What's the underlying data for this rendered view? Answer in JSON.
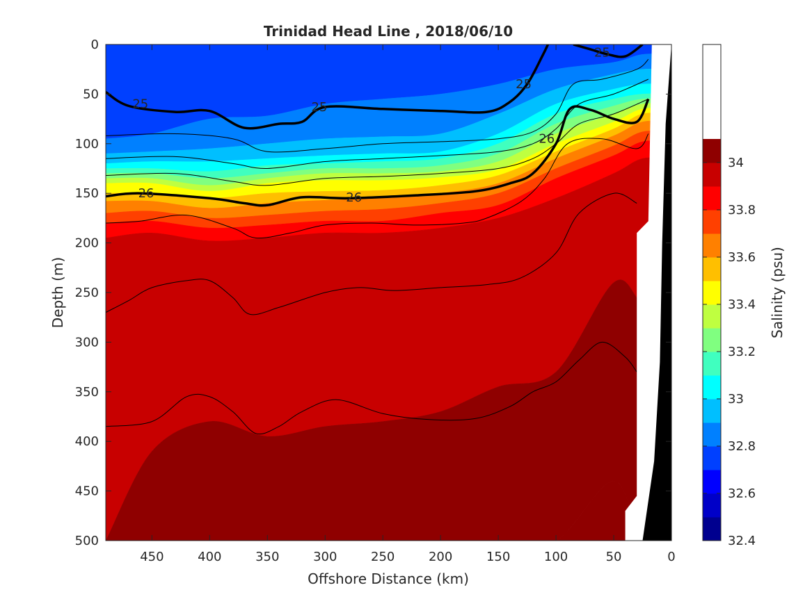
{
  "chart_data": {
    "type": "contourf",
    "title": "Trinidad Head Line , 2018/06/10",
    "xlabel": "Offshore Distance (km)",
    "ylabel": "Depth (m)",
    "xlim": [
      490,
      0
    ],
    "ylim": [
      0,
      500
    ],
    "x_reversed": true,
    "y_reversed": true,
    "xticks": [
      450,
      400,
      350,
      300,
      250,
      200,
      150,
      100,
      50,
      0
    ],
    "yticks": [
      0,
      50,
      100,
      150,
      200,
      250,
      300,
      350,
      400,
      450,
      500
    ],
    "colorbar": {
      "label": "Salinity (psu)",
      "range": [
        32.4,
        34.5
      ],
      "tick_values": [
        32.4,
        32.6,
        32.8,
        33.0,
        33.2,
        33.4,
        33.6,
        33.8,
        34.0
      ],
      "tick_labels": [
        "32.4",
        "32.6",
        "32.8",
        "33",
        "33.2",
        "33.4",
        "33.6",
        "33.8",
        "34"
      ],
      "levels": [
        32.4,
        32.5,
        32.6,
        32.7,
        32.8,
        32.9,
        33.0,
        33.1,
        33.2,
        33.3,
        33.4,
        33.5,
        33.6,
        33.7,
        33.8,
        33.9,
        34.0,
        34.1,
        34.2,
        34.3,
        34.4,
        34.5
      ],
      "colors": [
        "#00008f",
        "#0000c8",
        "#0000ff",
        "#0040ff",
        "#0080ff",
        "#00bfff",
        "#00ffff",
        "#40ffbf",
        "#80ff80",
        "#bfff40",
        "#ffff00",
        "#ffbf00",
        "#ff8000",
        "#ff4000",
        "#ff0000",
        "#c80000",
        "#8f0000"
      ]
    },
    "salinity_layers": [
      {
        "value": 32.75,
        "depth_top": [
          0,
          0,
          0,
          0,
          0,
          0,
          0,
          0,
          0,
          0,
          0
        ],
        "depth_bottom": [
          95,
          90,
          75,
          72,
          60,
          55,
          50,
          40,
          25,
          18,
          10
        ]
      },
      {
        "value": 32.85,
        "depth_top": [
          95,
          90,
          75,
          72,
          60,
          55,
          50,
          40,
          25,
          18,
          10
        ],
        "depth_bottom": [
          110,
          108,
          105,
          100,
          95,
          93,
          90,
          70,
          45,
          30,
          25
        ]
      },
      {
        "value": 32.95,
        "depth_top": [
          110,
          108,
          105,
          100,
          95,
          93,
          90,
          70,
          45,
          30,
          25
        ],
        "depth_bottom": [
          120,
          118,
          118,
          115,
          112,
          110,
          108,
          90,
          60,
          45,
          40
        ]
      },
      {
        "value": 33.05,
        "depth_top": [
          120,
          118,
          118,
          115,
          112,
          110,
          108,
          90,
          60,
          45,
          40
        ],
        "depth_bottom": [
          125,
          125,
          128,
          122,
          120,
          118,
          115,
          100,
          70,
          55,
          50
        ]
      },
      {
        "value": 33.15,
        "depth_top": [
          125,
          125,
          128,
          122,
          120,
          118,
          115,
          100,
          70,
          55,
          50
        ],
        "depth_bottom": [
          130,
          130,
          135,
          130,
          125,
          125,
          122,
          110,
          80,
          62,
          55
        ]
      },
      {
        "value": 33.25,
        "depth_top": [
          130,
          130,
          135,
          130,
          125,
          125,
          122,
          110,
          80,
          62,
          55
        ],
        "depth_bottom": [
          135,
          135,
          142,
          135,
          130,
          130,
          128,
          118,
          90,
          70,
          60
        ]
      },
      {
        "value": 33.35,
        "depth_top": [
          135,
          135,
          142,
          135,
          130,
          130,
          128,
          118,
          90,
          70,
          60
        ],
        "depth_bottom": [
          140,
          140,
          148,
          140,
          137,
          137,
          134,
          126,
          100,
          78,
          65
        ]
      },
      {
        "value": 33.45,
        "depth_top": [
          140,
          140,
          148,
          140,
          137,
          137,
          134,
          126,
          100,
          78,
          65
        ],
        "depth_bottom": [
          150,
          150,
          155,
          150,
          148,
          147,
          142,
          132,
          108,
          85,
          70
        ]
      },
      {
        "value": 33.55,
        "depth_top": [
          150,
          150,
          155,
          150,
          148,
          147,
          142,
          132,
          108,
          85,
          70
        ],
        "depth_bottom": [
          158,
          158,
          165,
          160,
          157,
          155,
          150,
          140,
          115,
          92,
          78
        ]
      },
      {
        "value": 33.65,
        "depth_top": [
          158,
          158,
          165,
          160,
          157,
          155,
          150,
          140,
          115,
          92,
          78
        ],
        "depth_bottom": [
          170,
          168,
          175,
          172,
          168,
          166,
          160,
          150,
          125,
          102,
          88
        ]
      },
      {
        "value": 33.75,
        "depth_top": [
          170,
          168,
          175,
          172,
          168,
          166,
          160,
          150,
          125,
          102,
          88
        ],
        "depth_bottom": [
          180,
          178,
          185,
          182,
          178,
          178,
          170,
          162,
          135,
          112,
          98
        ]
      },
      {
        "value": 33.85,
        "depth_top": [
          180,
          178,
          185,
          182,
          178,
          178,
          170,
          162,
          135,
          112,
          98
        ],
        "depth_bottom": [
          195,
          190,
          198,
          195,
          190,
          190,
          185,
          175,
          155,
          130,
          115
        ]
      },
      {
        "value": 33.95,
        "depth_top": [
          195,
          190,
          198,
          195,
          190,
          190,
          185,
          175,
          155,
          130,
          115
        ],
        "depth_bottom": [
          500,
          410,
          380,
          395,
          385,
          380,
          370,
          345,
          330,
          240,
          260
        ]
      },
      {
        "value": 34.05,
        "depth_top": [
          500,
          410,
          380,
          395,
          385,
          380,
          370,
          345,
          330,
          240,
          260
        ],
        "depth_bottom": [
          500,
          500,
          500,
          500,
          500,
          500,
          500,
          500,
          500,
          440,
          500
        ]
      },
      {
        "value": 34.15,
        "depth_top": [
          500,
          500,
          500,
          500,
          500,
          500,
          500,
          500,
          500,
          440,
          500
        ],
        "depth_bottom": [
          500,
          500,
          500,
          500,
          500,
          500,
          500,
          500,
          500,
          500,
          500
        ]
      }
    ],
    "layer_x": [
      490,
      450,
      400,
      350,
      300,
      250,
      200,
      150,
      100,
      50,
      25
    ],
    "contours": [
      {
        "level": "25",
        "labeled": true,
        "x": [
          490,
          470,
          430,
          400,
          370,
          340,
          320,
          300,
          250,
          200,
          160,
          140,
          125,
          112,
          107
        ],
        "y": [
          48,
          62,
          68,
          67,
          84,
          80,
          78,
          63,
          65,
          67,
          68,
          58,
          40,
          12,
          0
        ]
      },
      {
        "level": "25",
        "labeled": true,
        "x": [
          85,
          70,
          55,
          40,
          25
        ],
        "y": [
          0,
          5,
          10,
          12,
          0
        ]
      },
      {
        "level": "26",
        "labeled": true,
        "x": [
          490,
          460,
          400,
          370,
          350,
          320,
          280,
          220,
          170,
          140,
          120,
          100,
          88,
          70,
          50,
          30,
          20
        ],
        "y": [
          153,
          150,
          155,
          160,
          162,
          154,
          155,
          152,
          148,
          140,
          130,
          100,
          65,
          66,
          75,
          78,
          55
        ]
      },
      {
        "level": "",
        "labeled": false,
        "x": [
          490,
          430,
          380,
          350,
          300,
          250,
          200,
          150,
          120,
          100,
          85,
          60,
          30,
          20
        ],
        "y": [
          92,
          90,
          95,
          108,
          105,
          100,
          98,
          95,
          88,
          70,
          40,
          35,
          25,
          15
        ]
      },
      {
        "level": "",
        "labeled": false,
        "x": [
          490,
          430,
          380,
          350,
          300,
          250,
          200,
          150,
          120,
          100,
          80,
          50,
          20
        ],
        "y": [
          115,
          113,
          120,
          125,
          118,
          115,
          112,
          108,
          100,
          85,
          60,
          50,
          35
        ]
      },
      {
        "level": "",
        "labeled": false,
        "x": [
          490,
          430,
          380,
          350,
          300,
          250,
          200,
          150,
          120,
          100,
          80,
          50,
          20
        ],
        "y": [
          132,
          130,
          138,
          142,
          135,
          133,
          130,
          125,
          115,
          100,
          80,
          70,
          55
        ]
      },
      {
        "level": "",
        "labeled": false,
        "x": [
          490,
          460,
          420,
          380,
          360,
          330,
          300,
          260,
          220,
          180,
          160,
          130,
          110,
          90,
          60,
          30,
          20
        ],
        "y": [
          180,
          178,
          172,
          185,
          195,
          190,
          182,
          180,
          182,
          180,
          175,
          158,
          135,
          100,
          95,
          105,
          90
        ]
      },
      {
        "level": "",
        "labeled": false,
        "x": [
          490,
          470,
          450,
          420,
          400,
          380,
          365,
          340,
          300,
          270,
          240,
          200,
          160,
          130,
          100,
          80,
          50,
          30
        ],
        "y": [
          270,
          258,
          245,
          238,
          238,
          255,
          272,
          265,
          250,
          245,
          248,
          245,
          242,
          235,
          210,
          170,
          150,
          160
        ]
      },
      {
        "level": "",
        "labeled": false,
        "x": [
          490,
          450,
          420,
          400,
          380,
          360,
          340,
          320,
          290,
          250,
          210,
          170,
          140,
          120,
          100,
          80,
          60,
          40,
          30
        ],
        "y": [
          385,
          380,
          355,
          355,
          370,
          392,
          385,
          370,
          358,
          372,
          378,
          377,
          365,
          350,
          340,
          318,
          300,
          315,
          330
        ]
      }
    ],
    "contour_labels": [
      {
        "text": "25",
        "x": 460,
        "y": 60
      },
      {
        "text": "25",
        "x": 305,
        "y": 63
      },
      {
        "text": "25",
        "x": 128,
        "y": 40
      },
      {
        "text": "25",
        "x": 60,
        "y": 8
      },
      {
        "text": "26",
        "x": 455,
        "y": 150
      },
      {
        "text": "26",
        "x": 275,
        "y": 154
      },
      {
        "text": "26",
        "x": 108,
        "y": 95
      }
    ],
    "no_data_region": {
      "color": "#ffffff"
    },
    "seafloor": {
      "color": "#000000"
    }
  }
}
